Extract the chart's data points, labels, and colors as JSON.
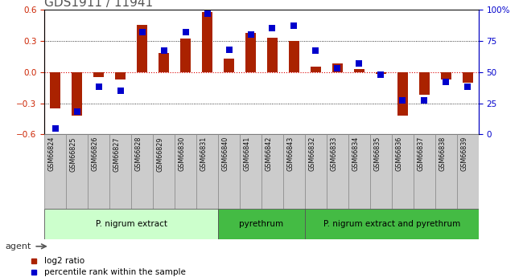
{
  "title": "GDS1911 / 11941",
  "samples": [
    "GSM66824",
    "GSM66825",
    "GSM66826",
    "GSM66827",
    "GSM66828",
    "GSM66829",
    "GSM66830",
    "GSM66831",
    "GSM66840",
    "GSM66841",
    "GSM66842",
    "GSM66843",
    "GSM66832",
    "GSM66833",
    "GSM66834",
    "GSM66835",
    "GSM66836",
    "GSM66837",
    "GSM66838",
    "GSM66839"
  ],
  "log2_ratio": [
    -0.35,
    -0.42,
    -0.05,
    -0.07,
    0.45,
    0.18,
    0.32,
    0.58,
    0.13,
    0.38,
    0.33,
    0.3,
    0.05,
    0.08,
    0.03,
    -0.02,
    -0.42,
    -0.22,
    -0.07,
    -0.1
  ],
  "percentile": [
    5,
    18,
    38,
    35,
    82,
    67,
    82,
    97,
    68,
    80,
    85,
    87,
    67,
    53,
    57,
    48,
    27,
    27,
    42,
    38
  ],
  "groups": [
    {
      "label": "P. nigrum extract",
      "start": 0,
      "end": 8,
      "color": "#ccffcc"
    },
    {
      "label": "pyrethrum",
      "start": 8,
      "end": 12,
      "color": "#44bb44"
    },
    {
      "label": "P. nigrum extract and pyrethrum",
      "start": 12,
      "end": 20,
      "color": "#44bb44"
    }
  ],
  "ylim_left": [
    -0.6,
    0.6
  ],
  "ylim_right": [
    0,
    100
  ],
  "left_yticks": [
    -0.6,
    -0.3,
    0.0,
    0.3,
    0.6
  ],
  "right_yticks": [
    0,
    25,
    50,
    75,
    100
  ],
  "right_yticklabels": [
    "0",
    "25",
    "50",
    "75",
    "100%"
  ],
  "bar_color": "#aa2200",
  "dot_color": "#0000cc",
  "bar_width": 0.5,
  "dot_size": 30,
  "tick_fontsize": 7.5,
  "sample_fontsize": 5.8,
  "group_fontsize": 7.5,
  "title_fontsize": 11,
  "legend_fontsize": 7.5,
  "sample_cell_color": "#cccccc",
  "sample_cell_edge": "#888888"
}
